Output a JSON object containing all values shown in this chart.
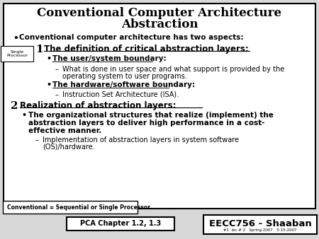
{
  "title_line1": "Conventional Computer Architecture",
  "title_line2": "Abstraction",
  "bg_color": "#d8d8d8",
  "border_color": "#000000",
  "text_color": "#000000",
  "main_bullet": "Conventional computer architecture has two aspects:",
  "item1_num": "1",
  "item1_heading": "The definition of critical abstraction layers:",
  "item1_sub1_bullet": "The user/system boundary:",
  "item1_sub1_dash1": "What is done in user space and what support is provided by the",
  "item1_sub1_dash1b": "operating system to user programs.",
  "item1_sub2_bullet": "The hardware/software boundary:",
  "item1_sub2_dash1": "Instruction Set Architecture (ISA).",
  "item2_num": "2",
  "item2_heading": "Realization of abstraction layers:",
  "item2_sub1_bullet_line1": "The organizational structures that realize (implement) the",
  "item2_sub1_bullet_line2": "abstraction layers to deliver high performance in a cost-",
  "item2_sub1_bullet_line3": "effective manner.",
  "item2_sub1_dash1": "Implementation of abstraction layers in system software",
  "item2_sub1_dash1b": "(OS)/hardware.",
  "footnote_left": "Conventional = Sequential or Single Processor",
  "footnote_center": "PCA Chapter 1.2, 1.3",
  "footnote_right": "EECC756 - Shaaban",
  "footnote_small": "#1  lec # 2   Spring 2007   3-15-2007",
  "single_processor_label": "Single\nProcessor"
}
